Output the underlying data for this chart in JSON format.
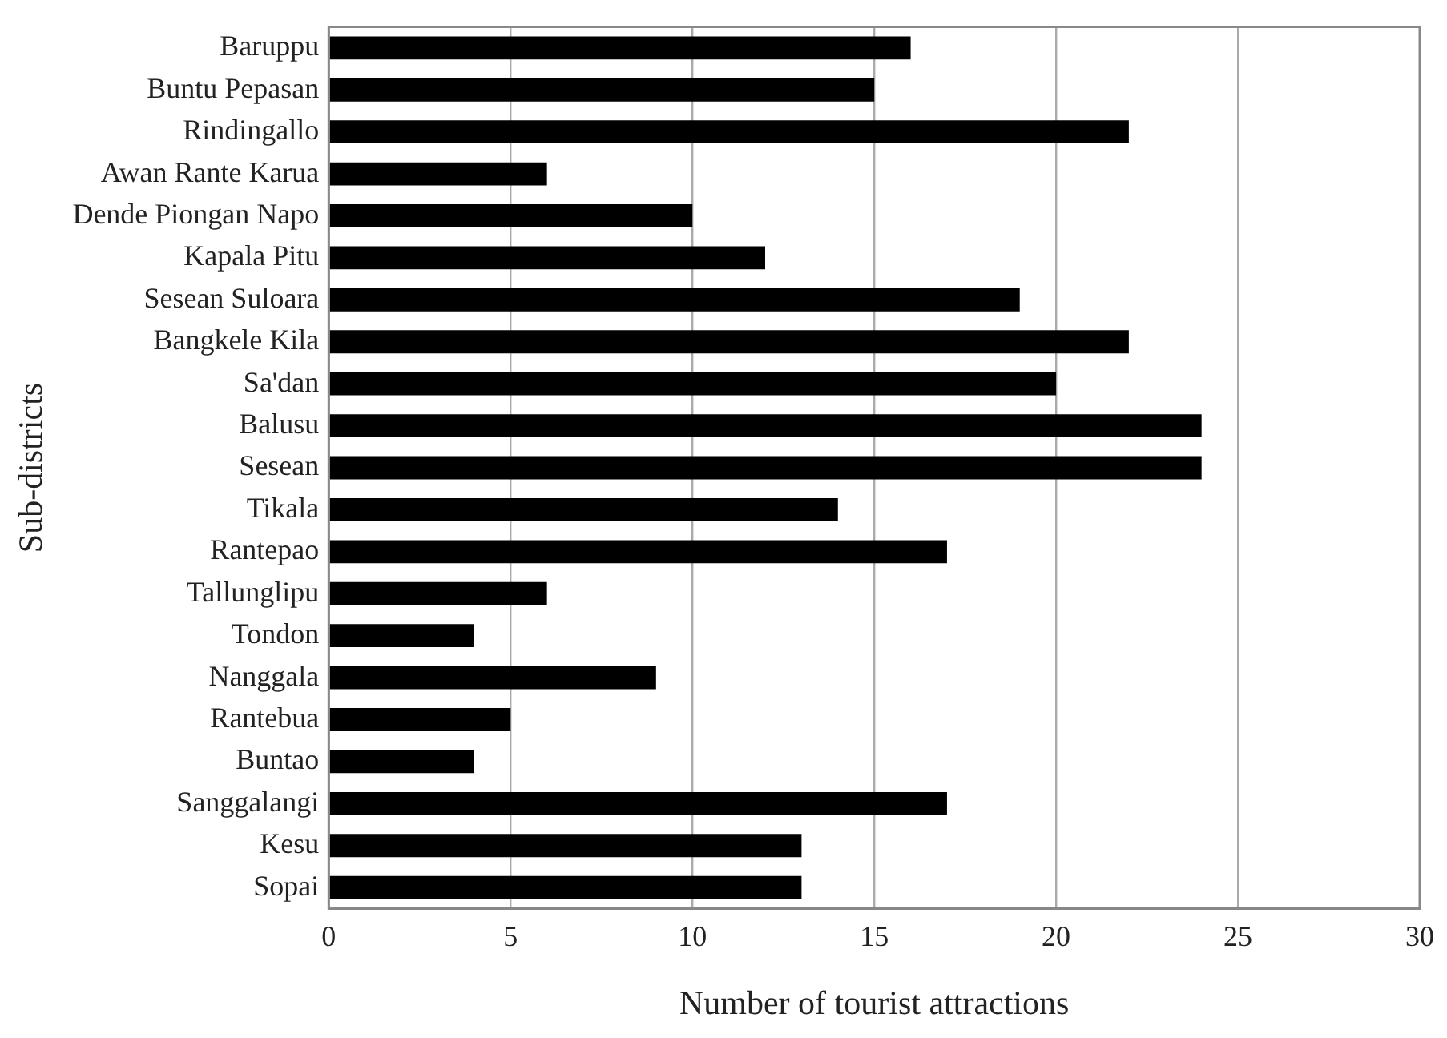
{
  "chart_data": {
    "type": "bar",
    "orientation": "horizontal",
    "xlabel": "Number of tourist attractions",
    "ylabel": "Sub-districts",
    "categories": [
      "Baruppu",
      "Buntu Pepasan",
      "Rindingallo",
      "Awan Rante Karua",
      "Dende Piongan Napo",
      "Kapala Pitu",
      "Sesean Suloara",
      "Bangkele Kila",
      "Sa'dan",
      "Balusu",
      "Sesean",
      "Tikala",
      "Rantepao",
      "Tallunglipu",
      "Tondon",
      "Nanggala",
      "Rantebua",
      "Buntao",
      "Sanggalangi",
      "Kesu",
      "Sopai"
    ],
    "values": [
      16,
      15,
      22,
      6,
      10,
      12,
      19,
      22,
      20,
      24,
      24,
      14,
      17,
      6,
      4,
      9,
      5,
      4,
      17,
      13,
      13
    ],
    "color": "#000000",
    "xlim": [
      0,
      30
    ],
    "xticks": [
      0,
      5,
      10,
      15,
      20,
      25,
      30
    ],
    "grid": "x",
    "legend": false
  }
}
